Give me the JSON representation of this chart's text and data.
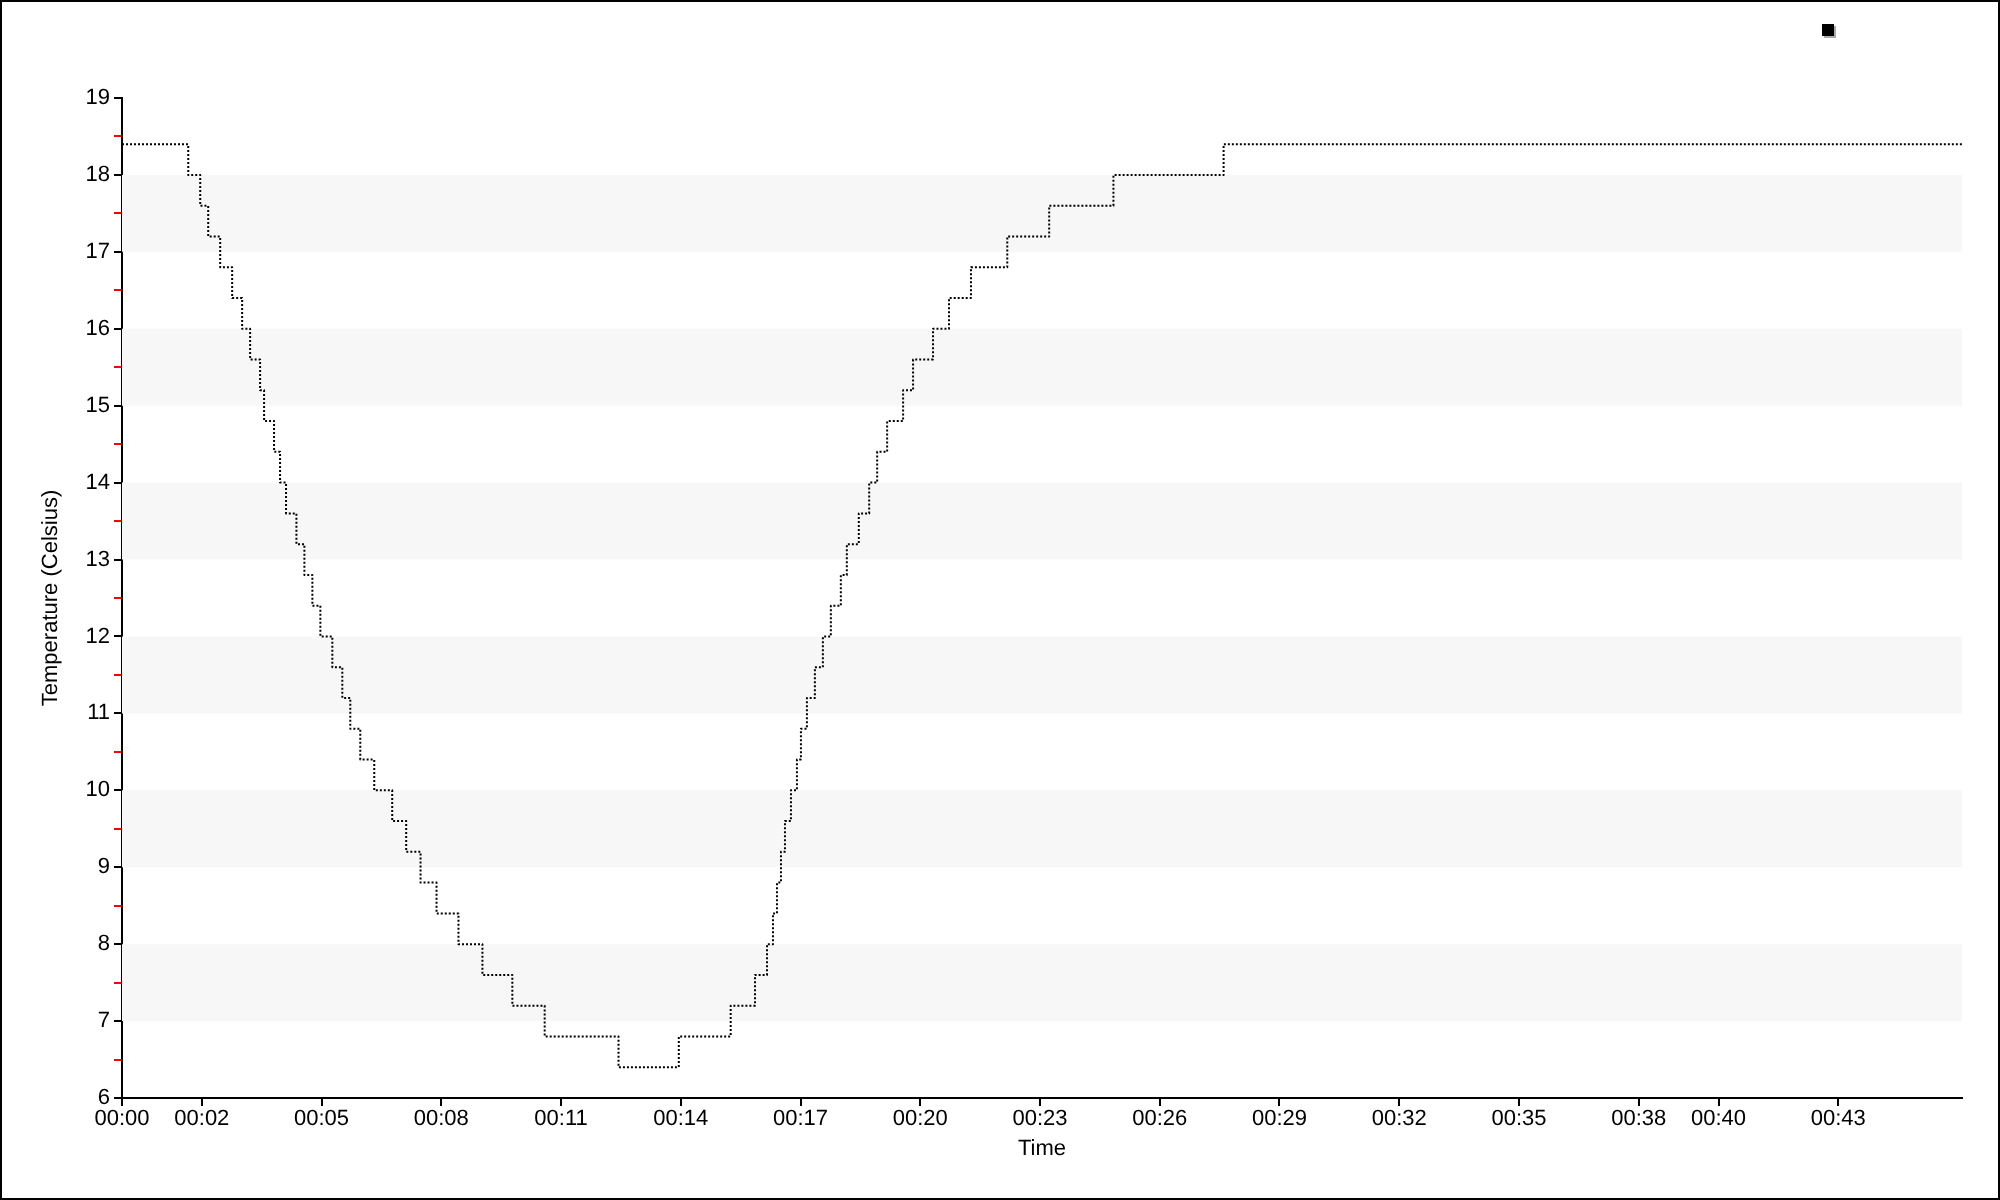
{
  "chart_data": {
    "type": "step",
    "xlabel": "Time",
    "ylabel": "Temperature (Celsius)",
    "x": [
      0,
      1.66,
      1.96,
      2.16,
      2.46,
      2.76,
      3.01,
      3.21,
      3.46,
      3.56,
      3.81,
      3.96,
      4.11,
      4.37,
      4.57,
      4.77,
      4.97,
      5.27,
      5.52,
      5.72,
      5.97,
      6.32,
      6.77,
      7.12,
      7.48,
      7.88,
      8.43,
      9.03,
      9.78,
      10.59,
      12.44,
      13.95,
      15.25,
      15.86,
      16.16,
      16.31,
      16.41,
      16.51,
      16.61,
      16.76,
      16.91,
      17.01,
      17.16,
      17.36,
      17.56,
      17.76,
      18.01,
      18.16,
      18.46,
      18.72,
      18.92,
      19.17,
      19.57,
      19.82,
      20.32,
      20.72,
      21.27,
      22.18,
      23.23,
      24.84,
      27.6,
      46.1
    ],
    "series": [
      {
        "color": "#000000",
        "values": [
          18.4,
          18.0,
          17.6,
          17.2,
          16.8,
          16.4,
          16.0,
          15.6,
          15.2,
          14.8,
          14.4,
          14.0,
          13.6,
          13.2,
          12.8,
          12.4,
          12.0,
          11.6,
          11.2,
          10.8,
          10.4,
          10.0,
          9.6,
          9.2,
          8.8,
          8.4,
          8.0,
          7.6,
          7.2,
          6.8,
          6.4,
          6.8,
          7.2,
          7.6,
          8.0,
          8.4,
          8.8,
          9.2,
          9.6,
          10.0,
          10.4,
          10.8,
          11.2,
          11.6,
          12.0,
          12.4,
          12.8,
          13.2,
          13.6,
          14.0,
          14.4,
          14.8,
          15.2,
          15.6,
          16.0,
          16.4,
          16.8,
          17.2,
          17.6,
          18.0,
          18.4,
          18.4
        ]
      }
    ],
    "xlim": [
      0,
      46.1
    ],
    "xticks": [
      {
        "value": 0,
        "label": "00:00"
      },
      {
        "value": 2,
        "label": "00:02"
      },
      {
        "value": 5,
        "label": "00:05"
      },
      {
        "value": 8,
        "label": "00:08"
      },
      {
        "value": 11,
        "label": "00:11"
      },
      {
        "value": 14,
        "label": "00:14"
      },
      {
        "value": 17,
        "label": "00:17"
      },
      {
        "value": 20,
        "label": "00:20"
      },
      {
        "value": 23,
        "label": "00:23"
      },
      {
        "value": 26,
        "label": "00:26"
      },
      {
        "value": 29,
        "label": "00:29"
      },
      {
        "value": 32,
        "label": "00:32"
      },
      {
        "value": 35,
        "label": "00:35"
      },
      {
        "value": 38,
        "label": "00:38"
      },
      {
        "value": 40,
        "label": "00:40"
      },
      {
        "value": 43,
        "label": "00:43"
      }
    ],
    "ylim": [
      6,
      19
    ],
    "yticks": [
      6,
      {
        "value": 6.5,
        "label": null
      },
      7,
      {
        "value": 7.5,
        "label": null
      },
      8,
      {
        "value": 8.5,
        "label": null
      },
      9,
      {
        "value": 9.5,
        "label": null
      },
      10,
      {
        "value": 10.5,
        "label": null
      },
      11,
      {
        "value": 11.5,
        "label": null
      },
      12,
      {
        "value": 12.5,
        "label": null
      },
      13,
      {
        "value": 13.5,
        "label": null
      },
      14,
      {
        "value": 14.5,
        "label": null
      },
      15,
      {
        "value": 15.5,
        "label": null
      },
      16,
      {
        "value": 16.5,
        "label": null
      },
      17,
      {
        "value": 17.5,
        "label": null
      },
      18,
      {
        "value": 18.5,
        "label": null
      },
      19
    ],
    "bands": [
      {
        "axis": "y",
        "from": 7,
        "to": 8,
        "color": "#f7f7f7"
      },
      {
        "axis": "y",
        "from": 9,
        "to": 10,
        "color": "#f7f7f7"
      },
      {
        "axis": "y",
        "from": 11,
        "to": 12,
        "color": "#f7f7f7"
      },
      {
        "axis": "y",
        "from": 13,
        "to": 14,
        "color": "#f7f7f7"
      },
      {
        "axis": "y",
        "from": 15,
        "to": 16,
        "color": "#f7f7f7"
      },
      {
        "axis": "y",
        "from": 17,
        "to": 18,
        "color": "#f7f7f7"
      }
    ],
    "line_style": "dotted",
    "marker": "none"
  }
}
